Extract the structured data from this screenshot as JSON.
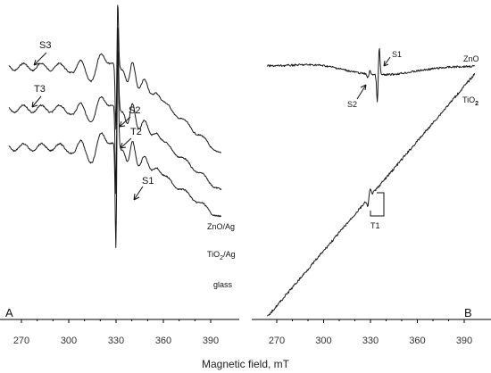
{
  "chart_data": {
    "type": "line",
    "xlabel": "Magnetic field, mT",
    "panels": [
      {
        "id": "A",
        "letter": "A",
        "xlim": [
          262,
          400
        ],
        "xticks": [
          270,
          300,
          330,
          360,
          390
        ],
        "tick_labels": [
          "270",
          "300",
          "330",
          "360",
          "390"
        ],
        "series": [
          {
            "name": "ZnO/Ag",
            "label": "ZnO/Ag",
            "label_sub": ""
          },
          {
            "name": "TiO2/Ag",
            "label": "TiO",
            "label_sub": "2",
            "label_tail": "/Ag"
          },
          {
            "name": "glass",
            "label": "glass",
            "label_sub": ""
          }
        ],
        "annotations": [
          {
            "text": "S3",
            "x": 275
          },
          {
            "text": "T3",
            "x": 275
          },
          {
            "text": "S2",
            "x": 329
          },
          {
            "text": "T2",
            "x": 329
          },
          {
            "text": "S1",
            "x": 337
          }
        ]
      },
      {
        "id": "B",
        "letter": "B",
        "xlim": [
          262,
          400
        ],
        "xticks": [
          270,
          300,
          330,
          360,
          390
        ],
        "tick_labels": [
          "270",
          "300",
          "330",
          "360",
          "390"
        ],
        "series": [
          {
            "name": "ZnO",
            "label": "ZnO",
            "label_sub": ""
          },
          {
            "name": "TiO2",
            "label": "TiO",
            "label_sub": "2",
            "label_tail": ""
          }
        ],
        "annotations": [
          {
            "text": "S2",
            "x": 328
          },
          {
            "text": "S1",
            "x": 335
          },
          {
            "text": "T1",
            "x": 329
          }
        ]
      }
    ]
  },
  "colors": {
    "trace": "#1a1a1a",
    "axis": "#000000",
    "text": "#333333"
  }
}
